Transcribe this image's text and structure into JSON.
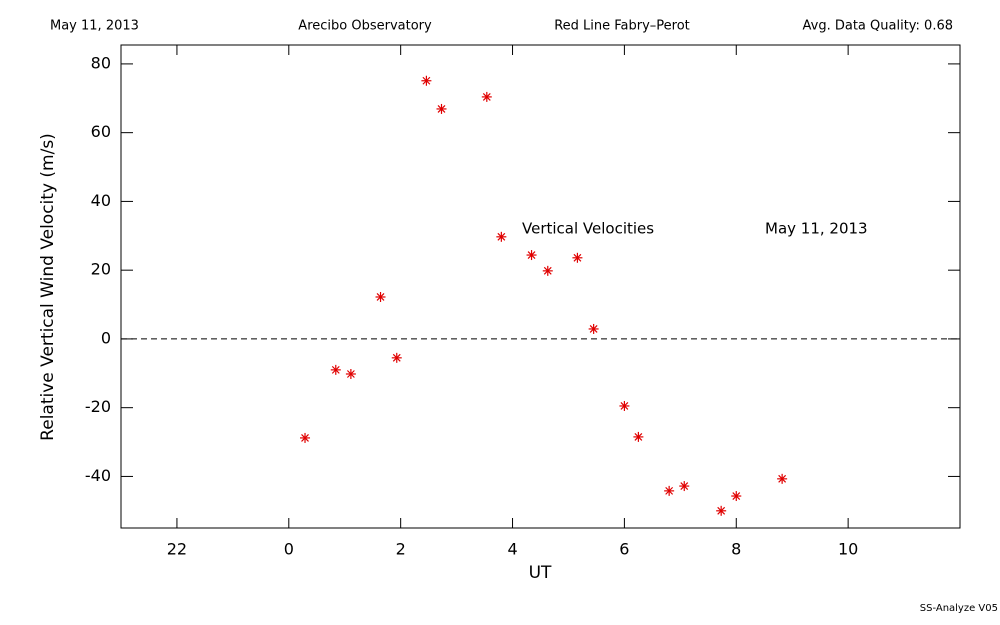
{
  "chart_data": {
    "type": "scatter",
    "header": [
      "May 11, 2013",
      "Arecibo Observatory",
      "Red Line Fabry–Perot",
      "Avg. Data Quality: 0.68"
    ],
    "annotations": [
      "Vertical Velocities",
      "May 11, 2013"
    ],
    "footer": "SS-Analyze V05",
    "x_label": "UT",
    "y_label": "Relative Vertical Wind Velocity (m/s)",
    "x": [
      0.29,
      0.84,
      1.11,
      1.64,
      1.93,
      2.46,
      2.73,
      3.54,
      3.8,
      4.34,
      4.63,
      5.16,
      5.45,
      6.0,
      6.25,
      6.8,
      7.07,
      7.73,
      8.0,
      8.82
    ],
    "values": [
      -28.8,
      -9.0,
      -10.2,
      12.2,
      -5.5,
      75.1,
      66.9,
      70.4,
      29.7,
      24.4,
      19.8,
      23.6,
      2.9,
      -19.5,
      -28.5,
      -44.2,
      -42.8,
      -50.0,
      -45.7,
      -40.7
    ],
    "color": "#e00000",
    "xlim": [
      -3,
      12
    ],
    "xticks": [
      {
        "value": -2,
        "label": "22"
      },
      0,
      2,
      4,
      6,
      8,
      10
    ],
    "ylim": [
      -55,
      85.5
    ],
    "yticks": [
      -40,
      -20,
      0,
      20,
      40,
      60,
      80
    ],
    "hline": 0
  }
}
